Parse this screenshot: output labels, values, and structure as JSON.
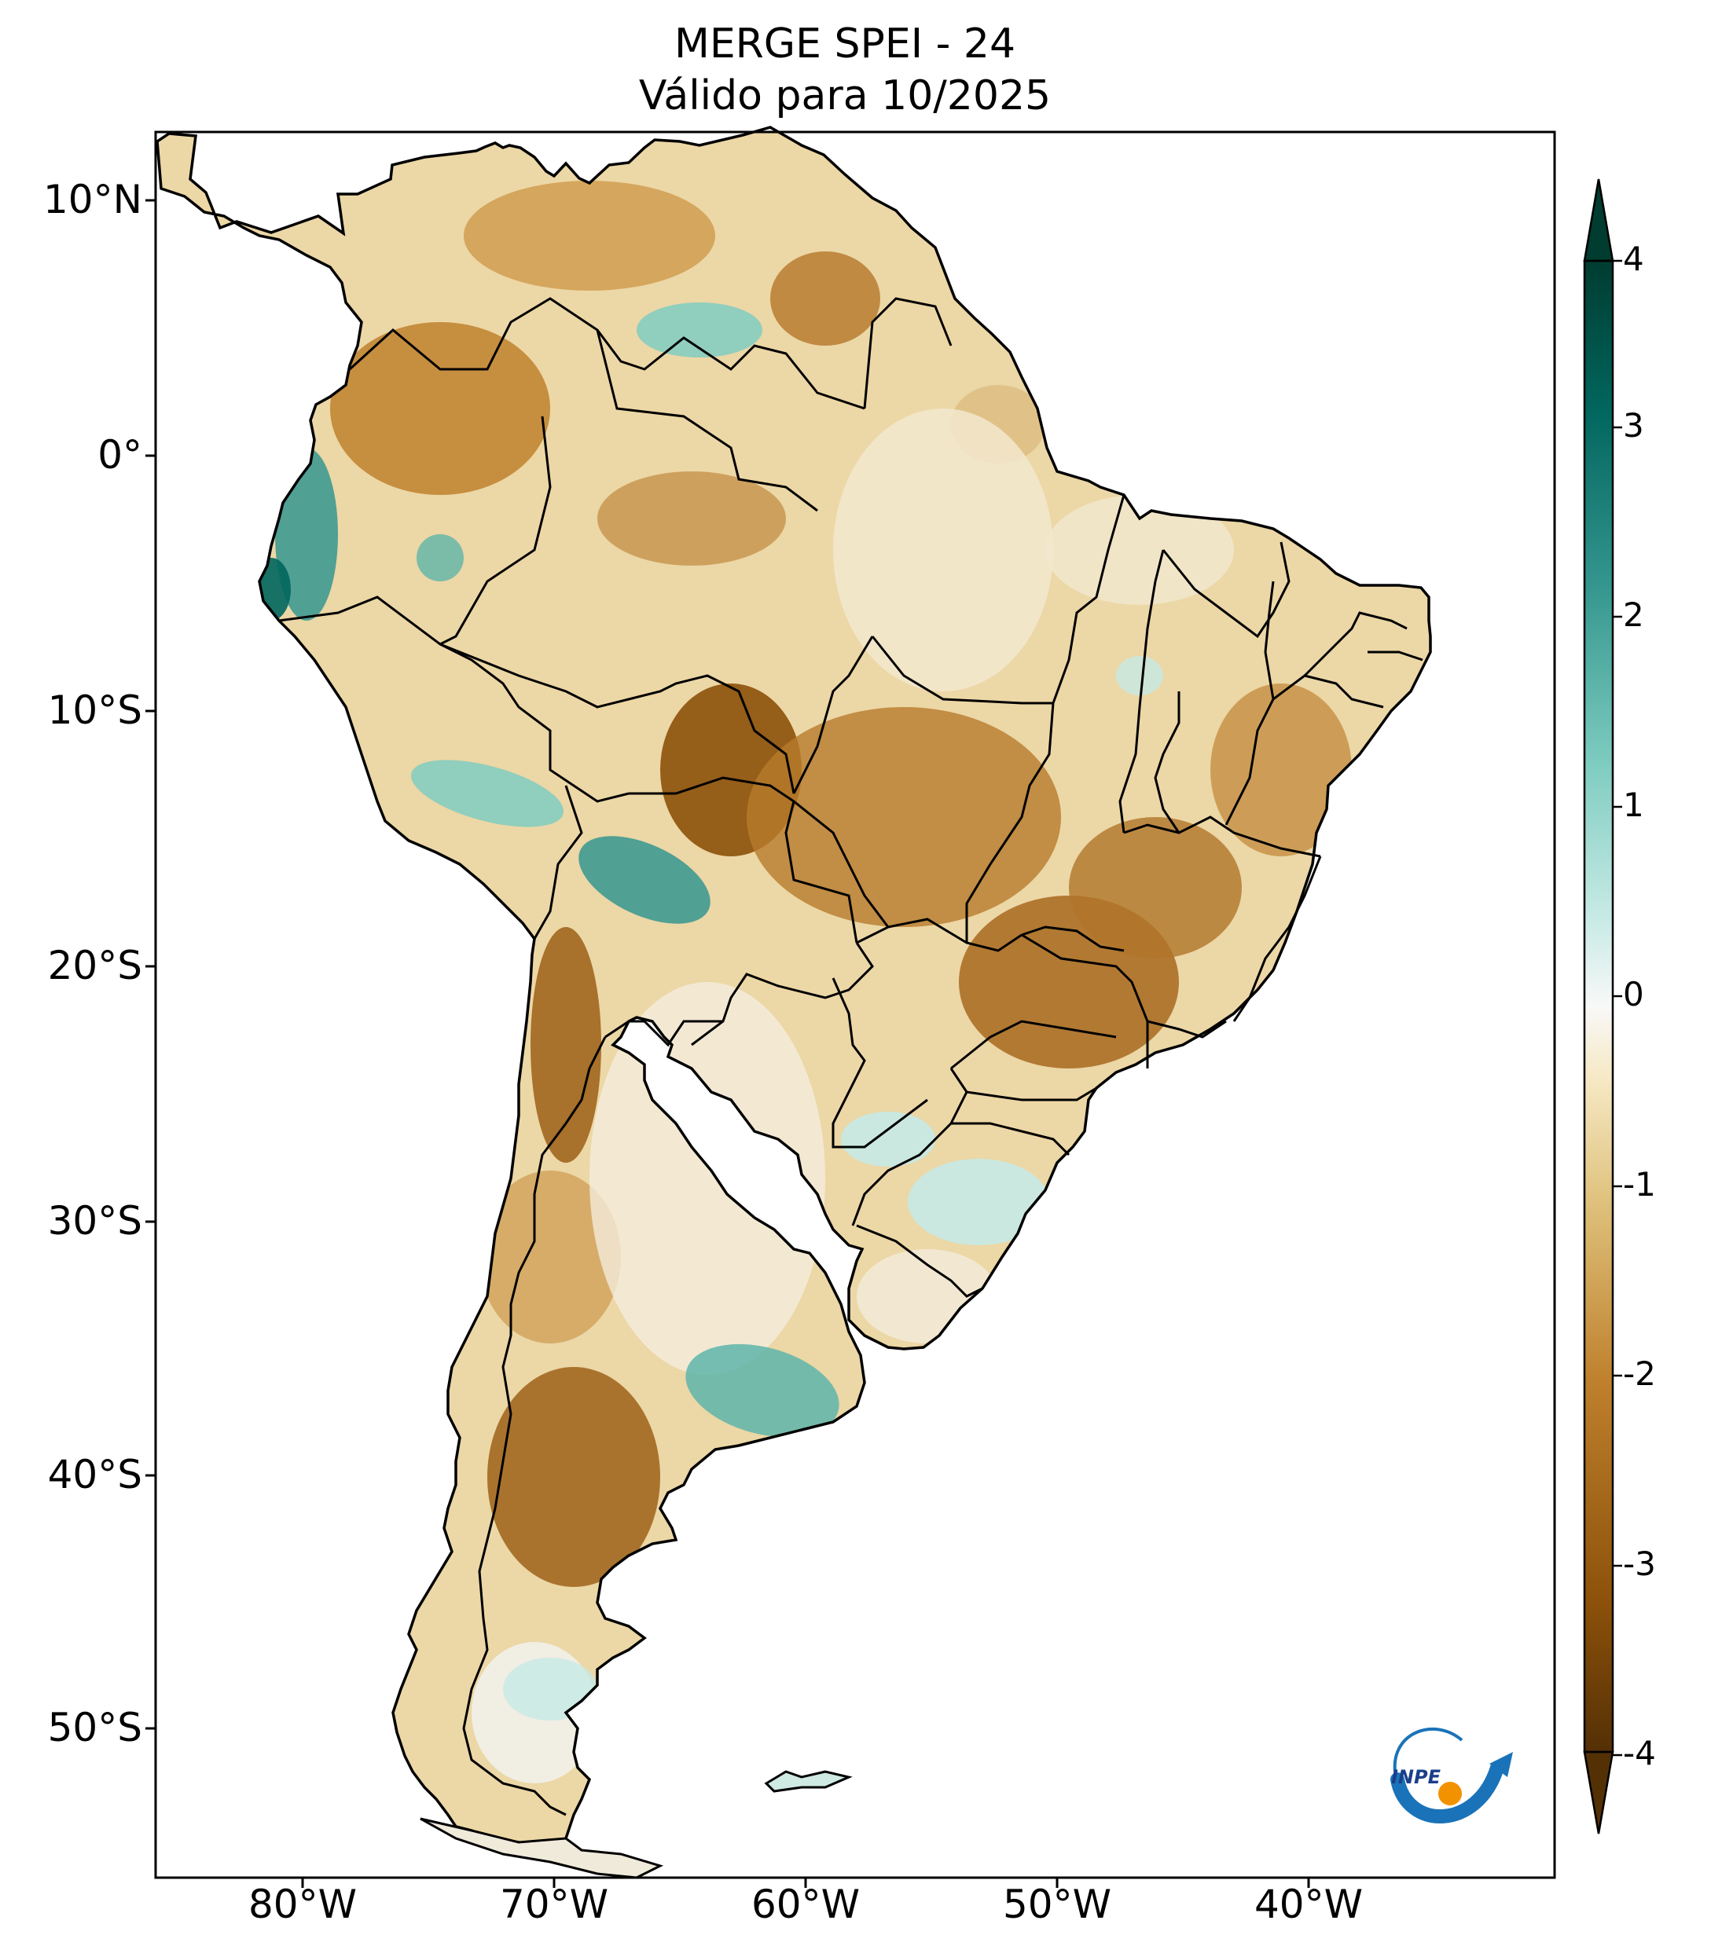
{
  "title": {
    "line1": "MERGE   SPEI - 24",
    "line2": "Válido para 10/2025"
  },
  "axes": {
    "lat_labels": [
      "10°N",
      "0°",
      "10°S",
      "20°S",
      "30°S",
      "40°S",
      "50°S"
    ],
    "lon_labels": [
      "80°W",
      "70°W",
      "60°W",
      "50°W",
      "40°W"
    ]
  },
  "colorbar": {
    "min": -4,
    "max": 4,
    "ticks": [
      "4",
      "3",
      "2",
      "1",
      "0",
      "-1",
      "-2",
      "-3",
      "-4"
    ],
    "colors": {
      "dry_extreme": "#543005",
      "dry_strong": "#8c510a",
      "dry": "#bf812d",
      "dry_mild": "#dfc27d",
      "dry_light": "#f6e8c3",
      "neutral": "#f5f5f5",
      "wet_light": "#c7eae5",
      "wet_mild": "#80cdc1",
      "wet": "#35978f",
      "wet_strong": "#01665e",
      "wet_extreme": "#003c30"
    }
  },
  "logo": {
    "text": "INPE",
    "colors": {
      "arc": "#1a73b8",
      "dot": "#f39200"
    }
  }
}
